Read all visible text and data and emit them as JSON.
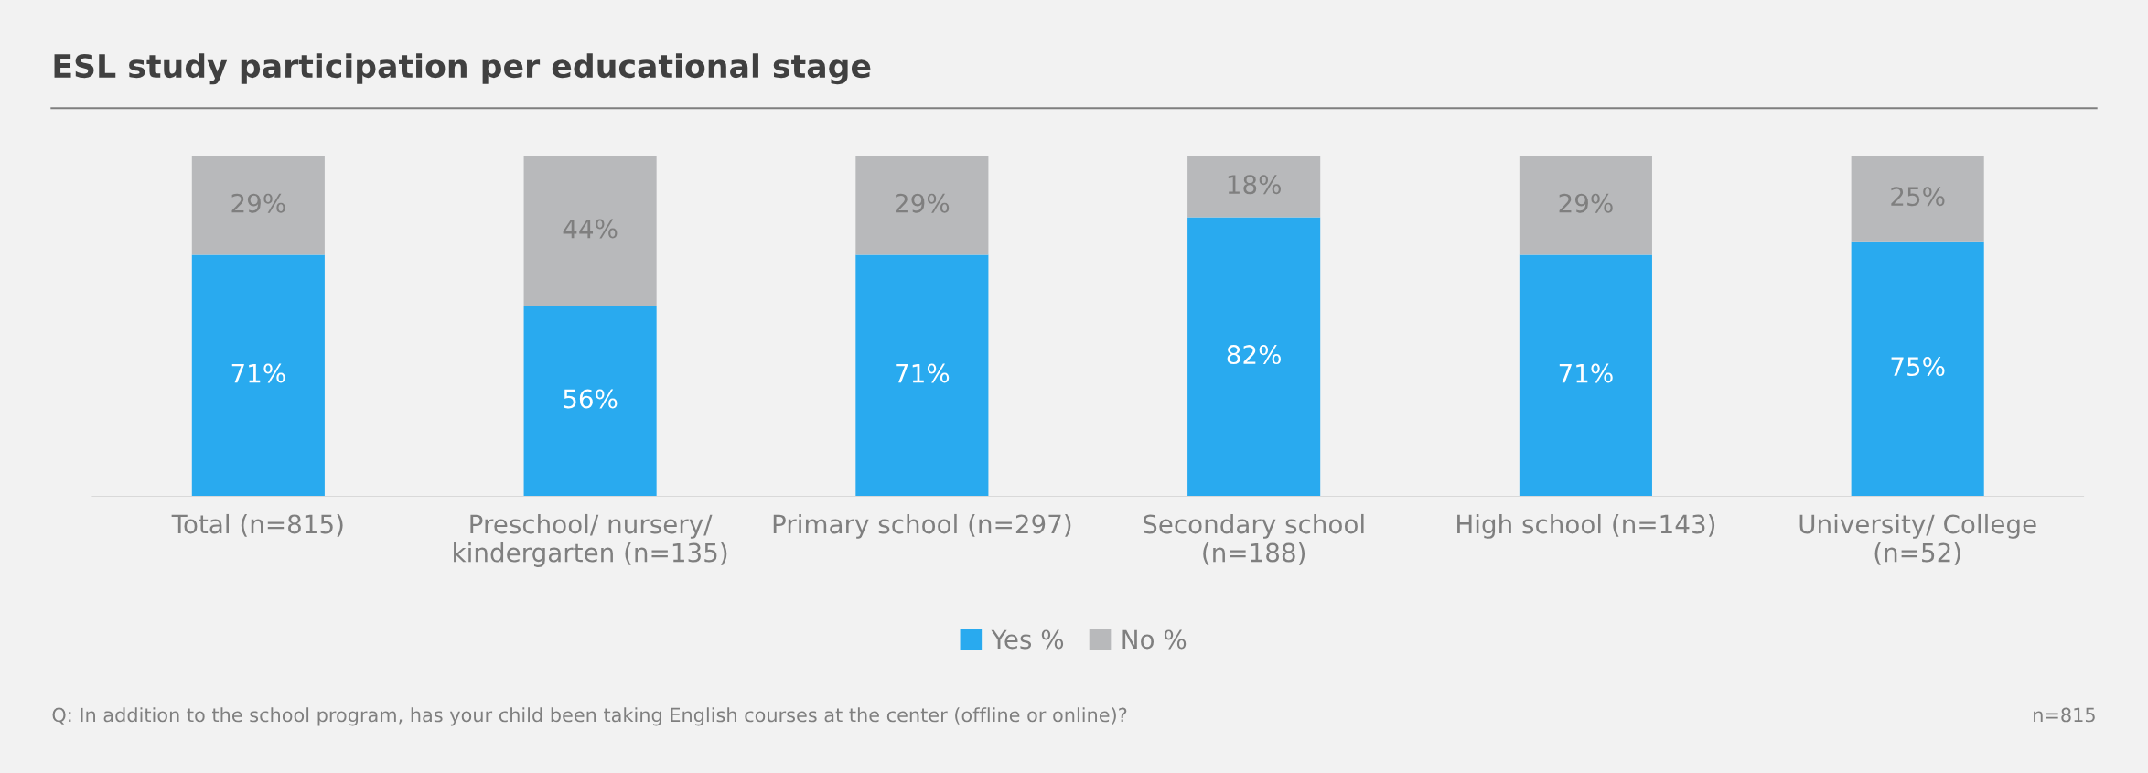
{
  "chart_data": {
    "type": "bar",
    "title": "ESL study participation per educational stage",
    "categories": [
      "Total (n=815)",
      "Preschool/ nursery/\nkindergarten (n=135)",
      "Primary school (n=297)",
      "Secondary school\n(n=188)",
      "High school (n=143)",
      "University/ College\n(n=52)"
    ],
    "series": [
      {
        "name": "Yes %",
        "color": "#29aaef",
        "values": [
          71,
          56,
          71,
          82,
          71,
          75
        ],
        "value_labels": [
          "71%",
          "56%",
          "71%",
          "82%",
          "71%",
          "75%"
        ]
      },
      {
        "name": "No %",
        "color": "#b8b9bb",
        "values": [
          29,
          44,
          29,
          18,
          29,
          25
        ],
        "value_labels": [
          "29%",
          "44%",
          "29%",
          "18%",
          "29%",
          "25%"
        ]
      }
    ],
    "stacked": true,
    "legend": "bottom",
    "grid": false,
    "annotations": [
      "Q: In addition to the school program, has your child been taking English courses at the center (offline or online)?",
      "n=815"
    ]
  }
}
